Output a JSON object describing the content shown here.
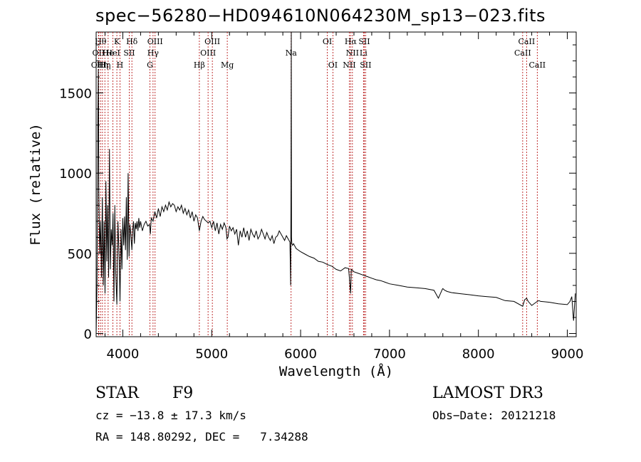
{
  "chart_data": {
    "type": "line",
    "title": "spec−56280−HD094610N064230M_sp13−023.fits",
    "xlabel": "Wavelength (Å)",
    "ylabel": "Flux (relative)",
    "xlim": [
      3700,
      9100
    ],
    "ylim": [
      -20,
      1880
    ],
    "xticks": [
      4000,
      5000,
      6000,
      7000,
      8000,
      9000
    ],
    "yticks": [
      0,
      500,
      1000,
      1500
    ],
    "grid": false,
    "series": [
      {
        "name": "spectrum",
        "x": [
          3700,
          3710,
          3720,
          3725,
          3730,
          3740,
          3750,
          3760,
          3770,
          3780,
          3790,
          3800,
          3810,
          3820,
          3830,
          3840,
          3850,
          3860,
          3870,
          3880,
          3890,
          3900,
          3910,
          3920,
          3933,
          3945,
          3960,
          3968,
          3980,
          3990,
          4000,
          4010,
          4020,
          4030,
          4040,
          4050,
          4060,
          4070,
          4080,
          4090,
          4102,
          4110,
          4120,
          4130,
          4140,
          4150,
          4160,
          4170,
          4180,
          4190,
          4200,
          4220,
          4240,
          4260,
          4280,
          4300,
          4310,
          4320,
          4340,
          4360,
          4380,
          4400,
          4420,
          4440,
          4460,
          4480,
          4500,
          4520,
          4540,
          4560,
          4580,
          4600,
          4620,
          4640,
          4660,
          4680,
          4700,
          4720,
          4740,
          4760,
          4780,
          4800,
          4820,
          4840,
          4861,
          4880,
          4900,
          4920,
          4940,
          4960,
          4980,
          5000,
          5020,
          5040,
          5060,
          5080,
          5100,
          5120,
          5140,
          5160,
          5172,
          5183,
          5200,
          5220,
          5240,
          5260,
          5280,
          5300,
          5320,
          5340,
          5360,
          5380,
          5400,
          5420,
          5440,
          5460,
          5480,
          5500,
          5520,
          5540,
          5560,
          5580,
          5600,
          5620,
          5640,
          5660,
          5680,
          5700,
          5720,
          5740,
          5760,
          5780,
          5800,
          5820,
          5840,
          5860,
          5880,
          5888,
          5892,
          5895,
          5898,
          5902,
          5910,
          5920,
          5950,
          6000,
          6050,
          6100,
          6150,
          6200,
          6250,
          6300,
          6350,
          6400,
          6450,
          6500,
          6540,
          6563,
          6570,
          6580,
          6600,
          6650,
          6700,
          6750,
          6800,
          6850,
          6900,
          6950,
          7000,
          7100,
          7200,
          7300,
          7400,
          7500,
          7550,
          7594,
          7600,
          7620,
          7650,
          7700,
          7800,
          7900,
          8000,
          8100,
          8200,
          8300,
          8400,
          8498,
          8520,
          8542,
          8560,
          8600,
          8662,
          8680,
          8700,
          8800,
          8900,
          9000,
          9030,
          9050,
          9070,
          9090
        ],
        "y": [
          0,
          300,
          1400,
          1650,
          900,
          500,
          700,
          350,
          850,
          300,
          700,
          250,
          950,
          450,
          800,
          350,
          1150,
          400,
          650,
          550,
          750,
          200,
          800,
          380,
          180,
          700,
          450,
          200,
          650,
          400,
          720,
          550,
          730,
          520,
          850,
          460,
          1000,
          480,
          680,
          620,
          520,
          640,
          700,
          560,
          690,
          650,
          700,
          640,
          720,
          660,
          700,
          640,
          680,
          700,
          670,
          680,
          620,
          720,
          700,
          760,
          720,
          780,
          730,
          790,
          760,
          800,
          770,
          820,
          790,
          810,
          800,
          760,
          790,
          770,
          800,
          750,
          780,
          740,
          770,
          720,
          760,
          700,
          740,
          720,
          640,
          700,
          730,
          710,
          700,
          690,
          700,
          660,
          700,
          640,
          690,
          620,
          680,
          650,
          690,
          660,
          590,
          600,
          670,
          640,
          660,
          620,
          650,
          550,
          640,
          600,
          660,
          600,
          640,
          580,
          650,
          620,
          600,
          640,
          590,
          610,
          650,
          620,
          590,
          630,
          600,
          580,
          610,
          560,
          600,
          610,
          640,
          620,
          600,
          580,
          610,
          590,
          570,
          300,
          900,
          1900,
          600,
          560,
          550,
          560,
          530,
          510,
          495,
          480,
          470,
          450,
          445,
          430,
          420,
          400,
          390,
          410,
          405,
          250,
          400,
          395,
          385,
          375,
          365,
          355,
          345,
          335,
          330,
          320,
          310,
          300,
          290,
          285,
          280,
          270,
          220,
          275,
          280,
          270,
          262,
          255,
          248,
          242,
          235,
          230,
          225,
          205,
          200,
          170,
          210,
          220,
          200,
          175,
          200,
          205,
          200,
          195,
          185,
          180,
          200,
          230,
          80,
          250
        ]
      }
    ],
    "line_labels": [
      {
        "wl": 3727,
        "label": "OII",
        "row": 2
      },
      {
        "wl": 3730,
        "label": "OIII",
        "row": 3
      },
      {
        "wl": 3750,
        "label": "Hθ",
        "row": 1
      },
      {
        "wl": 3771,
        "label": "Hη",
        "row": 3
      },
      {
        "wl": 3798,
        "label": "Hη",
        "row": 3
      },
      {
        "wl": 3835,
        "label": "He",
        "row": 2
      },
      {
        "wl": 3889,
        "label": "HeI",
        "row": 2
      },
      {
        "wl": 3933,
        "label": "K",
        "row": 1
      },
      {
        "wl": 3968,
        "label": "H",
        "row": 3
      },
      {
        "wl": 4072,
        "label": "SII",
        "row": 2
      },
      {
        "wl": 4102,
        "label": "Hδ",
        "row": 1
      },
      {
        "wl": 4305,
        "label": "G",
        "row": 3
      },
      {
        "wl": 4340,
        "label": "Hγ",
        "row": 2
      },
      {
        "wl": 4363,
        "label": "OIII",
        "row": 1
      },
      {
        "wl": 4861,
        "label": "Hβ",
        "row": 3
      },
      {
        "wl": 4959,
        "label": "OIII",
        "row": 2
      },
      {
        "wl": 5007,
        "label": "OIII",
        "row": 1
      },
      {
        "wl": 5175,
        "label": "Mg",
        "row": 3
      },
      {
        "wl": 5893,
        "label": "Na",
        "row": 2
      },
      {
        "wl": 6300,
        "label": "OI",
        "row": 1
      },
      {
        "wl": 6363,
        "label": "OI",
        "row": 3
      },
      {
        "wl": 6548,
        "label": "NII",
        "row": 3
      },
      {
        "wl": 6563,
        "label": "Hα",
        "row": 1
      },
      {
        "wl": 6583,
        "label": "NII",
        "row": 2
      },
      {
        "wl": 6707,
        "label": "Li",
        "row": 2
      },
      {
        "wl": 6716,
        "label": "SII",
        "row": 1
      },
      {
        "wl": 6731,
        "label": "SII",
        "row": 3
      },
      {
        "wl": 8498,
        "label": "CaII",
        "row": 2
      },
      {
        "wl": 8542,
        "label": "CaII",
        "row": 1
      },
      {
        "wl": 8662,
        "label": "CaII",
        "row": 3
      }
    ]
  },
  "info": {
    "object_class": "STAR",
    "subclass": "F9",
    "survey": "LAMOST DR3",
    "cz": "cz = −13.8 ± 17.3 km/s",
    "obs_date": "Obs−Date: 20121218",
    "coords": "RA = 148.80292, DEC =   7.34288"
  }
}
